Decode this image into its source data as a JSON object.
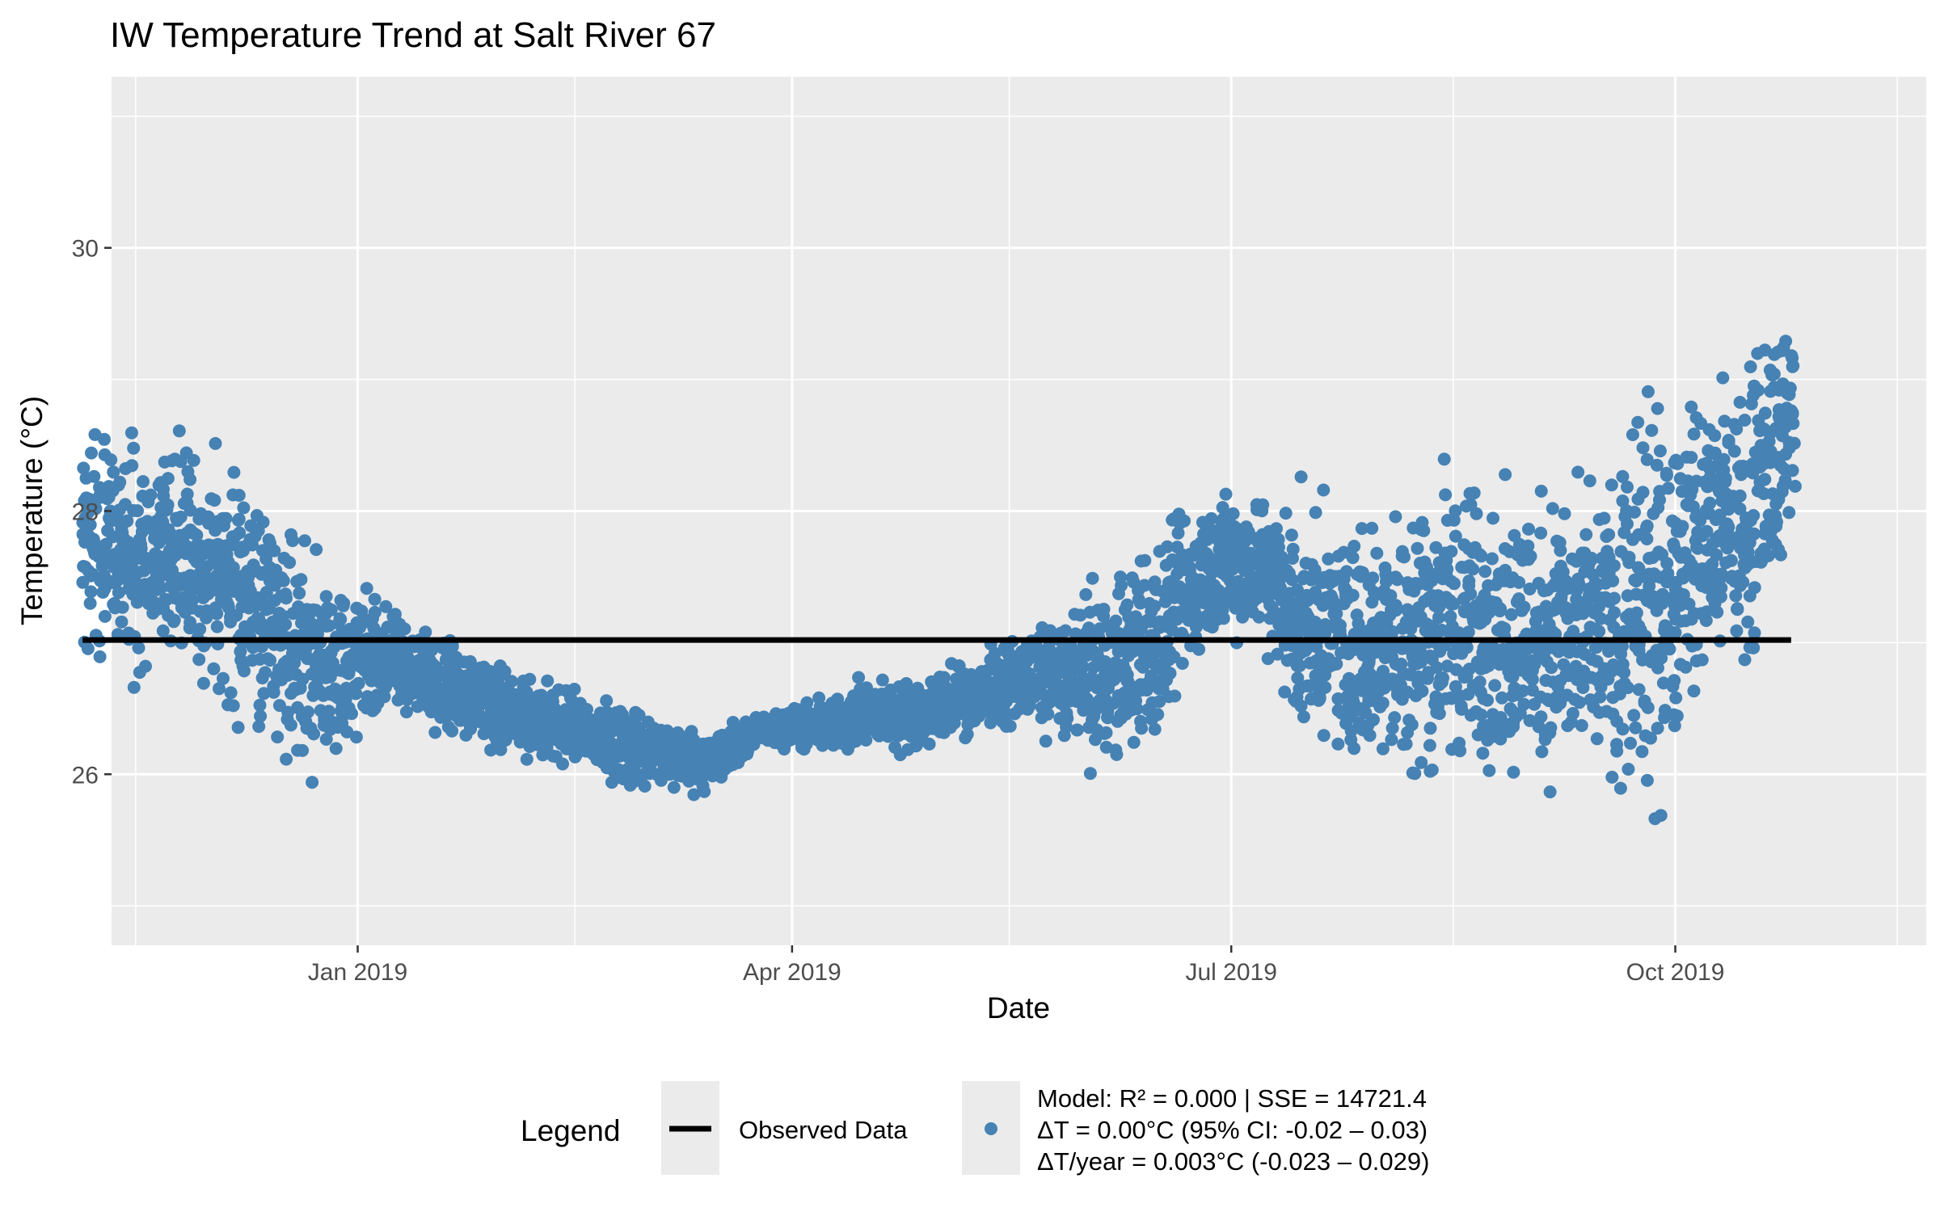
{
  "chart_data": {
    "type": "scatter",
    "title": "IW Temperature Trend at Salt River 67",
    "xlabel": "Date",
    "ylabel": "Temperature (°C)",
    "x_range": [
      "2018-11-11",
      "2019-11-22"
    ],
    "ylim": [
      24.7,
      31.3
    ],
    "grid": true,
    "x_ticks": [
      {
        "date": "2019-01-01",
        "label": "Jan 2019"
      },
      {
        "date": "2019-04-01",
        "label": "Apr 2019"
      },
      {
        "date": "2019-07-01",
        "label": "Jul 2019"
      },
      {
        "date": "2019-10-01",
        "label": "Oct 2019"
      }
    ],
    "x_minor_ticks": [
      "2018-11-16",
      "2019-02-15",
      "2019-05-16",
      "2019-08-16",
      "2019-11-16"
    ],
    "y_ticks": [
      {
        "value": 26,
        "label": "26"
      },
      {
        "value": 28,
        "label": "28"
      },
      {
        "value": 30,
        "label": "30"
      }
    ],
    "y_minor_ticks": [
      25,
      27,
      29,
      31
    ],
    "data_range": [
      "2018-11-05",
      "2019-10-25"
    ],
    "daily_summary": {
      "columns": [
        "date",
        "min",
        "max"
      ],
      "rows": [
        [
          "2018-11-05",
          26.6,
          28.9
        ],
        [
          "2018-11-15",
          26.5,
          28.8
        ],
        [
          "2018-11-25",
          26.6,
          28.8
        ],
        [
          "2018-12-05",
          26.3,
          28.5
        ],
        [
          "2018-12-15",
          26.0,
          28.3
        ],
        [
          "2018-12-25",
          25.7,
          27.9
        ],
        [
          "2019-01-05",
          26.4,
          27.4
        ],
        [
          "2019-01-15",
          26.3,
          27.2
        ],
        [
          "2019-01-25",
          26.1,
          27.1
        ],
        [
          "2019-02-05",
          26.0,
          26.8
        ],
        [
          "2019-02-15",
          26.0,
          26.7
        ],
        [
          "2019-02-25",
          25.8,
          26.6
        ],
        [
          "2019-03-05",
          25.8,
          26.5
        ],
        [
          "2019-03-15",
          25.8,
          26.4
        ],
        [
          "2019-03-25",
          26.2,
          26.5
        ],
        [
          "2019-04-05",
          26.1,
          26.6
        ],
        [
          "2019-04-15",
          26.1,
          26.8
        ],
        [
          "2019-04-25",
          26.1,
          26.8
        ],
        [
          "2019-05-05",
          26.2,
          26.9
        ],
        [
          "2019-05-15",
          26.3,
          27.1
        ],
        [
          "2019-05-25",
          26.2,
          27.3
        ],
        [
          "2019-06-05",
          25.8,
          27.7
        ],
        [
          "2019-06-15",
          26.0,
          28.0
        ],
        [
          "2019-06-25",
          26.8,
          28.3
        ],
        [
          "2019-07-05",
          26.9,
          28.4
        ],
        [
          "2019-07-15",
          26.0,
          28.3
        ],
        [
          "2019-07-25",
          25.9,
          28.1
        ],
        [
          "2019-08-05",
          25.7,
          28.4
        ],
        [
          "2019-08-15",
          25.6,
          28.7
        ],
        [
          "2019-08-25",
          25.8,
          28.4
        ],
        [
          "2019-09-05",
          25.6,
          28.5
        ],
        [
          "2019-09-15",
          25.7,
          28.4
        ],
        [
          "2019-09-25",
          25.1,
          29.3
        ],
        [
          "2019-10-05",
          26.4,
          29.2
        ],
        [
          "2019-10-15",
          26.4,
          29.4
        ],
        [
          "2019-10-25",
          27.7,
          29.9
        ]
      ]
    },
    "series": [
      {
        "name": "Observed Data",
        "kind": "line",
        "x": [
          "2018-11-05",
          "2019-10-25"
        ],
        "values": [
          27.02,
          27.02
        ],
        "color": "#000000"
      },
      {
        "name": "Model: R² = 0.000 | SSE = 14721.4\nΔT = 0.00°C (95% CI: -0.02 – 0.03)\nΔT/year = 0.003°C (-0.023 – 0.029)",
        "kind": "points",
        "color": "#4682B4"
      }
    ],
    "legend": {
      "title": "Legend",
      "position": "bottom",
      "entries": [
        {
          "kind": "line",
          "lines": [
            "Observed Data"
          ]
        },
        {
          "kind": "point",
          "lines": [
            "Model: R² = 0.000 | SSE = 14721.4",
            "ΔT = 0.00°C (95% CI: -0.02 – 0.03)",
            "ΔT/year = 0.003°C (-0.023 – 0.029)"
          ]
        }
      ]
    },
    "colors": {
      "panel": "#EBEBEB",
      "grid": "#FFFFFF",
      "points": "#4682B4",
      "trend": "#000000",
      "axis_text": "#4D4D4D"
    }
  }
}
